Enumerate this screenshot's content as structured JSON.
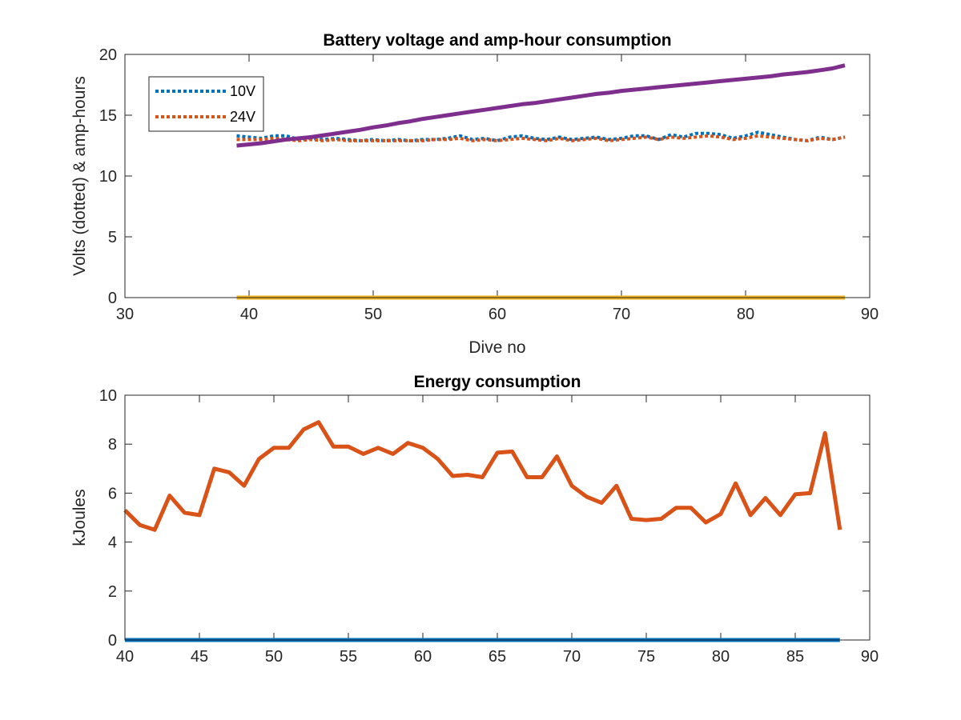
{
  "chart_data": [
    {
      "type": "line",
      "title": "Battery voltage and amp-hour consumption",
      "xlabel": "Dive no",
      "ylabel": "Volts (dotted) & amp-hours",
      "xlim": [
        30,
        90
      ],
      "ylim": [
        0,
        20
      ],
      "xticks": [
        "30",
        "40",
        "50",
        "60",
        "70",
        "80",
        "90"
      ],
      "yticks": [
        "0",
        "5",
        "10",
        "15",
        "20"
      ],
      "x": [
        39,
        40,
        41,
        42,
        43,
        44,
        45,
        46,
        47,
        48,
        49,
        50,
        51,
        52,
        53,
        54,
        55,
        56,
        57,
        58,
        59,
        60,
        61,
        62,
        63,
        64,
        65,
        66,
        67,
        68,
        69,
        70,
        71,
        72,
        73,
        74,
        75,
        76,
        77,
        78,
        79,
        80,
        81,
        82,
        83,
        84,
        85,
        86,
        87,
        88
      ],
      "legend": {
        "position": "top-left"
      },
      "series": [
        {
          "name": "10V",
          "style": "dotted",
          "color": "#0072BD",
          "values": [
            13.3,
            13.2,
            13.1,
            13.3,
            13.3,
            13.0,
            13.1,
            13.0,
            13.1,
            13.0,
            12.9,
            13.0,
            12.9,
            13.0,
            12.9,
            13.0,
            13.0,
            13.1,
            13.3,
            13.0,
            13.1,
            12.9,
            13.2,
            13.3,
            13.1,
            13.0,
            13.2,
            13.0,
            13.1,
            13.2,
            13.0,
            13.1,
            13.3,
            13.3,
            13.0,
            13.4,
            13.2,
            13.5,
            13.5,
            13.4,
            13.1,
            13.3,
            13.6,
            13.4,
            13.2,
            13.0,
            12.9,
            13.2,
            13.0,
            13.2
          ]
        },
        {
          "name": "24V",
          "style": "dotted",
          "color": "#D95319",
          "values": [
            13.0,
            13.0,
            13.0,
            13.1,
            13.0,
            12.9,
            13.0,
            12.9,
            13.0,
            12.9,
            12.9,
            12.9,
            12.9,
            12.9,
            12.9,
            12.9,
            13.0,
            13.0,
            13.1,
            12.9,
            13.0,
            12.9,
            13.0,
            13.1,
            13.0,
            12.9,
            13.1,
            12.9,
            13.0,
            13.1,
            12.9,
            13.0,
            13.1,
            13.2,
            13.0,
            13.2,
            13.1,
            13.2,
            13.3,
            13.2,
            13.0,
            13.1,
            13.3,
            13.2,
            13.1,
            13.0,
            12.9,
            13.1,
            13.0,
            13.2
          ]
        },
        {
          "name": "",
          "style": "solid",
          "color": "#7E2F8E",
          "values": [
            12.5,
            12.6,
            12.7,
            12.85,
            13.0,
            13.1,
            13.2,
            13.35,
            13.5,
            13.65,
            13.8,
            14.0,
            14.15,
            14.35,
            14.5,
            14.7,
            14.85,
            15.0,
            15.15,
            15.3,
            15.45,
            15.6,
            15.75,
            15.9,
            16.0,
            16.15,
            16.3,
            16.45,
            16.6,
            16.75,
            16.85,
            17.0,
            17.1,
            17.2,
            17.3,
            17.4,
            17.5,
            17.6,
            17.7,
            17.8,
            17.9,
            18.0,
            18.1,
            18.2,
            18.35,
            18.45,
            18.55,
            18.7,
            18.85,
            19.1
          ]
        },
        {
          "name": "",
          "style": "solid",
          "color": "#EDB120",
          "values": [
            0,
            0,
            0,
            0,
            0,
            0,
            0,
            0,
            0,
            0,
            0,
            0,
            0,
            0,
            0,
            0,
            0,
            0,
            0,
            0,
            0,
            0,
            0,
            0,
            0,
            0,
            0,
            0,
            0,
            0,
            0,
            0,
            0,
            0,
            0,
            0,
            0,
            0,
            0,
            0,
            0,
            0,
            0,
            0,
            0,
            0,
            0,
            0,
            0,
            0
          ]
        }
      ]
    },
    {
      "type": "line",
      "title": "Energy consumption",
      "xlabel": "",
      "ylabel": "kJoules",
      "xlim": [
        40,
        90
      ],
      "ylim": [
        0,
        10
      ],
      "xticks": [
        "40",
        "45",
        "50",
        "55",
        "60",
        "65",
        "70",
        "75",
        "80",
        "85",
        "90"
      ],
      "yticks": [
        "0",
        "2",
        "4",
        "6",
        "8",
        "10"
      ],
      "x": [
        40,
        41,
        42,
        43,
        44,
        45,
        46,
        47,
        48,
        49,
        50,
        51,
        52,
        53,
        54,
        55,
        56,
        57,
        58,
        59,
        60,
        61,
        62,
        63,
        64,
        65,
        66,
        67,
        68,
        69,
        70,
        71,
        72,
        73,
        74,
        75,
        76,
        77,
        78,
        79,
        80,
        81,
        82,
        83,
        84,
        85,
        86,
        87,
        88
      ],
      "series": [
        {
          "name": "",
          "style": "solid",
          "color": "#0072BD",
          "values": [
            0,
            0,
            0,
            0,
            0,
            0,
            0,
            0,
            0,
            0,
            0,
            0,
            0,
            0,
            0,
            0,
            0,
            0,
            0,
            0,
            0,
            0,
            0,
            0,
            0,
            0,
            0,
            0,
            0,
            0,
            0,
            0,
            0,
            0,
            0,
            0,
            0,
            0,
            0,
            0,
            0,
            0,
            0,
            0,
            0,
            0,
            0,
            0,
            0
          ]
        },
        {
          "name": "",
          "style": "solid",
          "color": "#D95319",
          "values": [
            5.3,
            4.7,
            4.5,
            5.9,
            5.2,
            5.1,
            7.0,
            6.85,
            6.3,
            7.4,
            7.85,
            7.85,
            8.6,
            8.9,
            7.9,
            7.9,
            7.6,
            7.85,
            7.6,
            8.05,
            7.85,
            7.4,
            6.7,
            6.75,
            6.65,
            7.65,
            7.7,
            6.65,
            6.65,
            7.5,
            6.3,
            5.85,
            5.6,
            6.3,
            4.95,
            4.9,
            4.95,
            5.4,
            5.4,
            4.8,
            5.15,
            6.4,
            5.1,
            5.8,
            5.1,
            5.95,
            6.0,
            8.45,
            4.5
          ]
        }
      ]
    }
  ]
}
